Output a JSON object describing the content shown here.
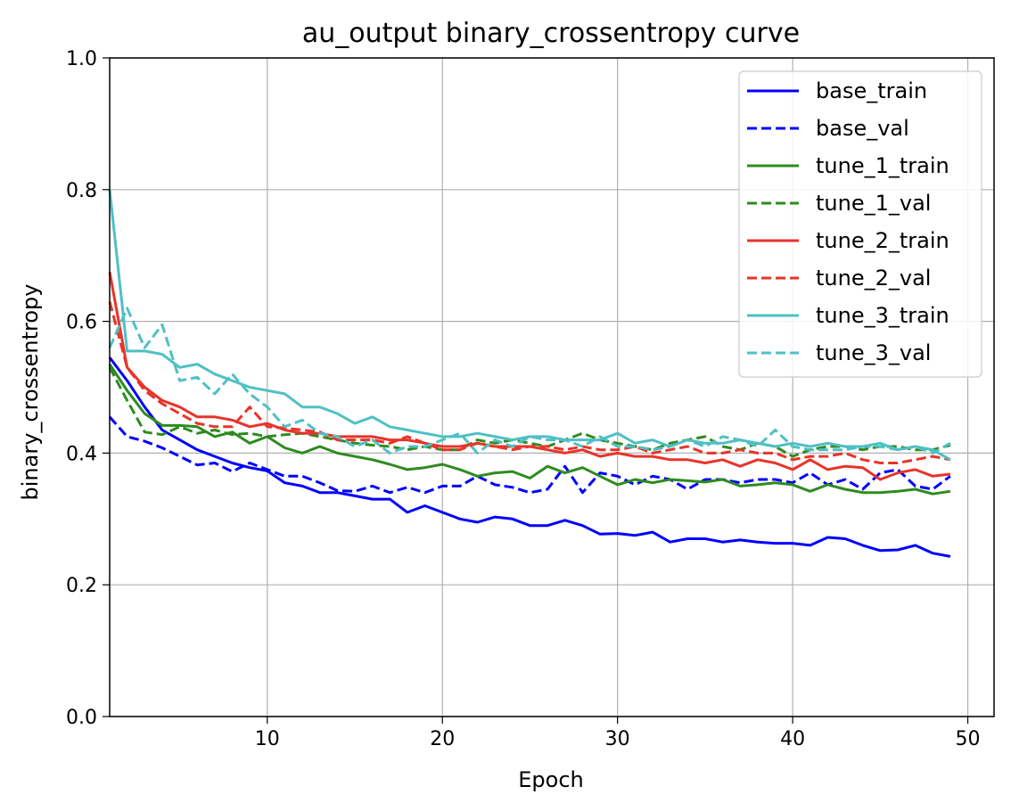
{
  "chart_data": {
    "type": "line",
    "title": "au_output binary_crossentropy curve",
    "xlabel": "Epoch",
    "ylabel": "binary_crossentropy",
    "xlim": [
      1,
      51.5
    ],
    "ylim": [
      0.0,
      1.0
    ],
    "xticks": [
      10,
      20,
      30,
      40,
      50
    ],
    "yticks": [
      0.0,
      0.2,
      0.4,
      0.6,
      0.8,
      1.0
    ],
    "xtick_labels": [
      "10",
      "20",
      "30",
      "40",
      "50"
    ],
    "ytick_labels": [
      "0.0",
      "0.2",
      "0.4",
      "0.6",
      "0.8",
      "1.0"
    ],
    "grid": true,
    "legend_position": "top-right",
    "x": [
      1,
      2,
      3,
      4,
      5,
      6,
      7,
      8,
      9,
      10,
      11,
      12,
      13,
      14,
      15,
      16,
      17,
      18,
      19,
      20,
      21,
      22,
      23,
      24,
      25,
      26,
      27,
      28,
      29,
      30,
      31,
      32,
      33,
      34,
      35,
      36,
      37,
      38,
      39,
      40,
      41,
      42,
      43,
      44,
      45,
      46,
      47,
      48,
      49
    ],
    "series": [
      {
        "name": "base_train",
        "color": "#0000ff",
        "dash": "solid",
        "values": [
          0.545,
          0.51,
          0.47,
          0.435,
          0.42,
          0.405,
          0.395,
          0.385,
          0.378,
          0.373,
          0.355,
          0.35,
          0.34,
          0.34,
          0.335,
          0.33,
          0.33,
          0.31,
          0.32,
          0.31,
          0.3,
          0.295,
          0.303,
          0.3,
          0.29,
          0.29,
          0.298,
          0.29,
          0.277,
          0.278,
          0.275,
          0.28,
          0.265,
          0.27,
          0.27,
          0.265,
          0.268,
          0.265,
          0.263,
          0.263,
          0.26,
          0.272,
          0.27,
          0.26,
          0.252,
          0.253,
          0.26,
          0.248,
          0.243
        ]
      },
      {
        "name": "base_val",
        "color": "#0000ff",
        "dash": "dashed",
        "values": [
          0.455,
          0.425,
          0.418,
          0.408,
          0.395,
          0.382,
          0.385,
          0.372,
          0.385,
          0.375,
          0.365,
          0.365,
          0.355,
          0.343,
          0.342,
          0.35,
          0.34,
          0.348,
          0.34,
          0.35,
          0.35,
          0.365,
          0.352,
          0.348,
          0.34,
          0.345,
          0.38,
          0.34,
          0.37,
          0.365,
          0.352,
          0.365,
          0.36,
          0.345,
          0.36,
          0.36,
          0.355,
          0.36,
          0.36,
          0.355,
          0.37,
          0.352,
          0.36,
          0.345,
          0.37,
          0.375,
          0.35,
          0.345,
          0.365
        ]
      },
      {
        "name": "tune_1_train",
        "color": "#2e8b1f",
        "dash": "solid",
        "values": [
          0.535,
          0.495,
          0.46,
          0.442,
          0.442,
          0.44,
          0.425,
          0.432,
          0.415,
          0.425,
          0.408,
          0.4,
          0.41,
          0.4,
          0.395,
          0.39,
          0.383,
          0.375,
          0.378,
          0.383,
          0.375,
          0.365,
          0.37,
          0.372,
          0.362,
          0.38,
          0.37,
          0.378,
          0.365,
          0.352,
          0.36,
          0.355,
          0.36,
          0.358,
          0.356,
          0.36,
          0.35,
          0.352,
          0.355,
          0.352,
          0.342,
          0.352,
          0.345,
          0.34,
          0.34,
          0.342,
          0.345,
          0.338,
          0.342
        ]
      },
      {
        "name": "tune_1_val",
        "color": "#2e8b1f",
        "dash": "dashed",
        "values": [
          0.53,
          0.48,
          0.432,
          0.428,
          0.44,
          0.43,
          0.435,
          0.428,
          0.43,
          0.425,
          0.428,
          0.43,
          0.425,
          0.42,
          0.415,
          0.412,
          0.41,
          0.405,
          0.41,
          0.405,
          0.405,
          0.42,
          0.415,
          0.42,
          0.415,
          0.41,
          0.42,
          0.43,
          0.42,
          0.415,
          0.41,
          0.405,
          0.415,
          0.42,
          0.425,
          0.41,
          0.405,
          0.415,
          0.41,
          0.395,
          0.405,
          0.41,
          0.41,
          0.405,
          0.41,
          0.41,
          0.405,
          0.405,
          0.412
        ]
      },
      {
        "name": "tune_2_train",
        "color": "#e8342a",
        "dash": "solid",
        "values": [
          0.675,
          0.53,
          0.5,
          0.48,
          0.47,
          0.455,
          0.455,
          0.45,
          0.44,
          0.445,
          0.435,
          0.43,
          0.43,
          0.425,
          0.425,
          0.425,
          0.42,
          0.42,
          0.415,
          0.41,
          0.41,
          0.415,
          0.41,
          0.41,
          0.41,
          0.405,
          0.4,
          0.405,
          0.395,
          0.4,
          0.395,
          0.395,
          0.39,
          0.39,
          0.385,
          0.39,
          0.38,
          0.39,
          0.385,
          0.375,
          0.39,
          0.375,
          0.38,
          0.378,
          0.36,
          0.37,
          0.375,
          0.365,
          0.368
        ]
      },
      {
        "name": "tune_2_val",
        "color": "#e8342a",
        "dash": "dashed",
        "values": [
          0.63,
          0.53,
          0.495,
          0.475,
          0.46,
          0.445,
          0.44,
          0.44,
          0.47,
          0.44,
          0.438,
          0.435,
          0.432,
          0.42,
          0.42,
          0.42,
          0.415,
          0.425,
          0.415,
          0.405,
          0.405,
          0.415,
          0.41,
          0.405,
          0.41,
          0.41,
          0.405,
          0.41,
          0.405,
          0.405,
          0.41,
          0.4,
          0.405,
          0.41,
          0.4,
          0.4,
          0.405,
          0.4,
          0.4,
          0.39,
          0.395,
          0.395,
          0.4,
          0.39,
          0.385,
          0.385,
          0.39,
          0.395,
          0.39
        ]
      },
      {
        "name": "tune_3_train",
        "color": "#4fc0c4",
        "dash": "solid",
        "values": [
          0.8,
          0.555,
          0.555,
          0.55,
          0.53,
          0.535,
          0.52,
          0.51,
          0.5,
          0.495,
          0.49,
          0.47,
          0.47,
          0.46,
          0.445,
          0.455,
          0.44,
          0.435,
          0.43,
          0.425,
          0.425,
          0.43,
          0.425,
          0.42,
          0.425,
          0.425,
          0.42,
          0.42,
          0.42,
          0.43,
          0.415,
          0.42,
          0.41,
          0.42,
          0.415,
          0.415,
          0.42,
          0.415,
          0.41,
          0.415,
          0.41,
          0.415,
          0.41,
          0.41,
          0.415,
          0.405,
          0.41,
          0.405,
          0.39
        ]
      },
      {
        "name": "tune_3_val",
        "color": "#4fc0c4",
        "dash": "dashed",
        "values": [
          0.56,
          0.62,
          0.56,
          0.595,
          0.51,
          0.515,
          0.49,
          0.52,
          0.49,
          0.47,
          0.44,
          0.45,
          0.43,
          0.425,
          0.41,
          0.42,
          0.4,
          0.41,
          0.41,
          0.42,
          0.43,
          0.4,
          0.42,
          0.41,
          0.425,
          0.42,
          0.42,
          0.41,
          0.425,
          0.41,
          0.41,
          0.405,
          0.41,
          0.42,
          0.41,
          0.425,
          0.42,
          0.41,
          0.435,
          0.41,
          0.405,
          0.405,
          0.405,
          0.41,
          0.41,
          0.405,
          0.41,
          0.4,
          0.415
        ]
      }
    ]
  }
}
